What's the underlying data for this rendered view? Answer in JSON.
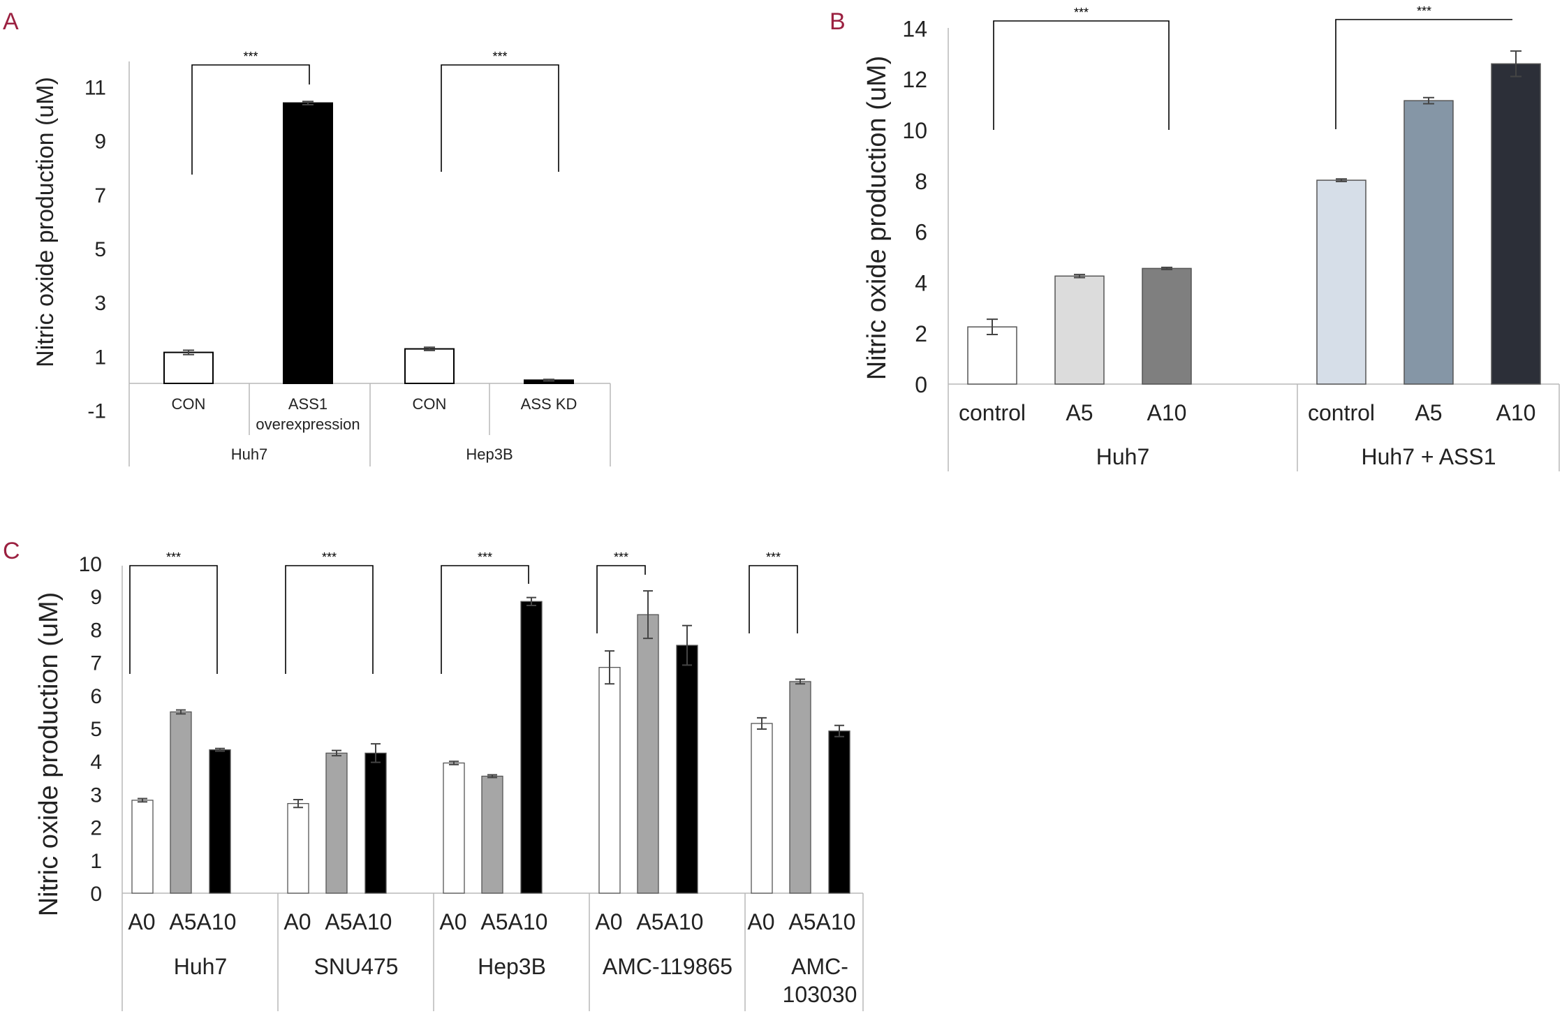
{
  "chart_data": [
    {
      "panel": "A",
      "type": "bar",
      "ylabel": "Nitric oxide production (uM)",
      "ylim": [
        -2,
        12
      ],
      "yticks": [
        "-1",
        "1",
        "3",
        "5",
        "7",
        "9",
        "11"
      ],
      "groups": [
        "Huh7",
        "Hep3B"
      ],
      "bars": [
        {
          "group": "Huh7",
          "label": "CON",
          "value": 1.15,
          "error": 0.08,
          "color": "#ffffff"
        },
        {
          "group": "Huh7",
          "label": "ASS1 overexpression",
          "label_lines": [
            "ASS1",
            "overexpression"
          ],
          "value": 10.4,
          "error": 0.06,
          "color": "#000000"
        },
        {
          "group": "Hep3B",
          "label": "CON",
          "value": 1.28,
          "error": 0.06,
          "color": "#ffffff"
        },
        {
          "group": "Hep3B",
          "label": "ASS KD",
          "value": 0.12,
          "error": 0.03,
          "color": "#000000"
        }
      ],
      "significance": [
        {
          "label": "***",
          "from": 0,
          "to": 1
        },
        {
          "label": "***",
          "from": 2,
          "to": 3
        }
      ]
    },
    {
      "panel": "B",
      "type": "bar",
      "ylabel": "Nitric oxide production (uM)",
      "ylim": [
        0,
        14
      ],
      "yticks": [
        "0",
        "2",
        "4",
        "6",
        "8",
        "10",
        "12",
        "14"
      ],
      "groups": [
        "Huh7",
        "Huh7 + ASS1"
      ],
      "bars": [
        {
          "group": "Huh7",
          "label": "control",
          "value": 2.25,
          "error": 0.3,
          "color": "#ffffff"
        },
        {
          "group": "Huh7",
          "label": "A5",
          "value": 4.25,
          "error": 0.06,
          "color": "#dcdcdc"
        },
        {
          "group": "Huh7",
          "label": "A10",
          "value": 4.55,
          "error": 0.04,
          "color": "#7f7f7f"
        },
        {
          "group": "Huh7 + ASS1",
          "label": "control",
          "value": 8.02,
          "error": 0.05,
          "color": "#d6dee8"
        },
        {
          "group": "Huh7 + ASS1",
          "label": "A5",
          "value": 11.15,
          "error": 0.12,
          "color": "#8596a6"
        },
        {
          "group": "Huh7 + ASS1",
          "label": "A10",
          "value": 12.6,
          "error": 0.5,
          "color": "#2c2f38"
        }
      ],
      "significance": [
        {
          "label": "***",
          "from": 0,
          "to": 2
        },
        {
          "label": "***",
          "from": 3,
          "to": 5
        }
      ]
    },
    {
      "panel": "C",
      "type": "bar",
      "ylabel": "Nitric oxide production (uM)",
      "ylim": [
        0,
        10
      ],
      "yticks": [
        "0",
        "1",
        "2",
        "3",
        "4",
        "5",
        "6",
        "7",
        "8",
        "9",
        "10"
      ],
      "groups": [
        "Huh7",
        "SNU475",
        "Hep3B",
        "AMC-119865",
        "AMC-103030"
      ],
      "group_label_lines": [
        [
          "Huh7"
        ],
        [
          "SNU475"
        ],
        [
          "Hep3B"
        ],
        [
          "AMC-119865"
        ],
        [
          "AMC-",
          "103030"
        ]
      ],
      "series": [
        {
          "name": "A0",
          "color": "#ffffff",
          "values": [
            2.82,
            2.72,
            3.95,
            6.85,
            5.15
          ],
          "errors": [
            0.05,
            0.12,
            0.05,
            0.5,
            0.17
          ]
        },
        {
          "name": "A5",
          "color": "#a6a6a6",
          "values": [
            5.5,
            4.25,
            3.55,
            8.45,
            6.42
          ],
          "errors": [
            0.06,
            0.08,
            0.04,
            0.72,
            0.07
          ]
        },
        {
          "name": "A10",
          "color": "#000000",
          "values": [
            4.35,
            4.25,
            8.85,
            7.52,
            4.92
          ],
          "errors": [
            0.04,
            0.28,
            0.12,
            0.6,
            0.17
          ]
        }
      ],
      "significance": [
        {
          "label": "***",
          "group": 0,
          "from": "A0",
          "to": "A10"
        },
        {
          "label": "***",
          "group": 1,
          "from": "A0",
          "to": "A10"
        },
        {
          "label": "***",
          "group": 2,
          "from": "A0",
          "to": "A10"
        },
        {
          "label": "***",
          "group": 3,
          "from": "A0",
          "to": "A5"
        },
        {
          "label": "***",
          "group": 4,
          "from": "A0",
          "to": "A5"
        }
      ]
    }
  ]
}
